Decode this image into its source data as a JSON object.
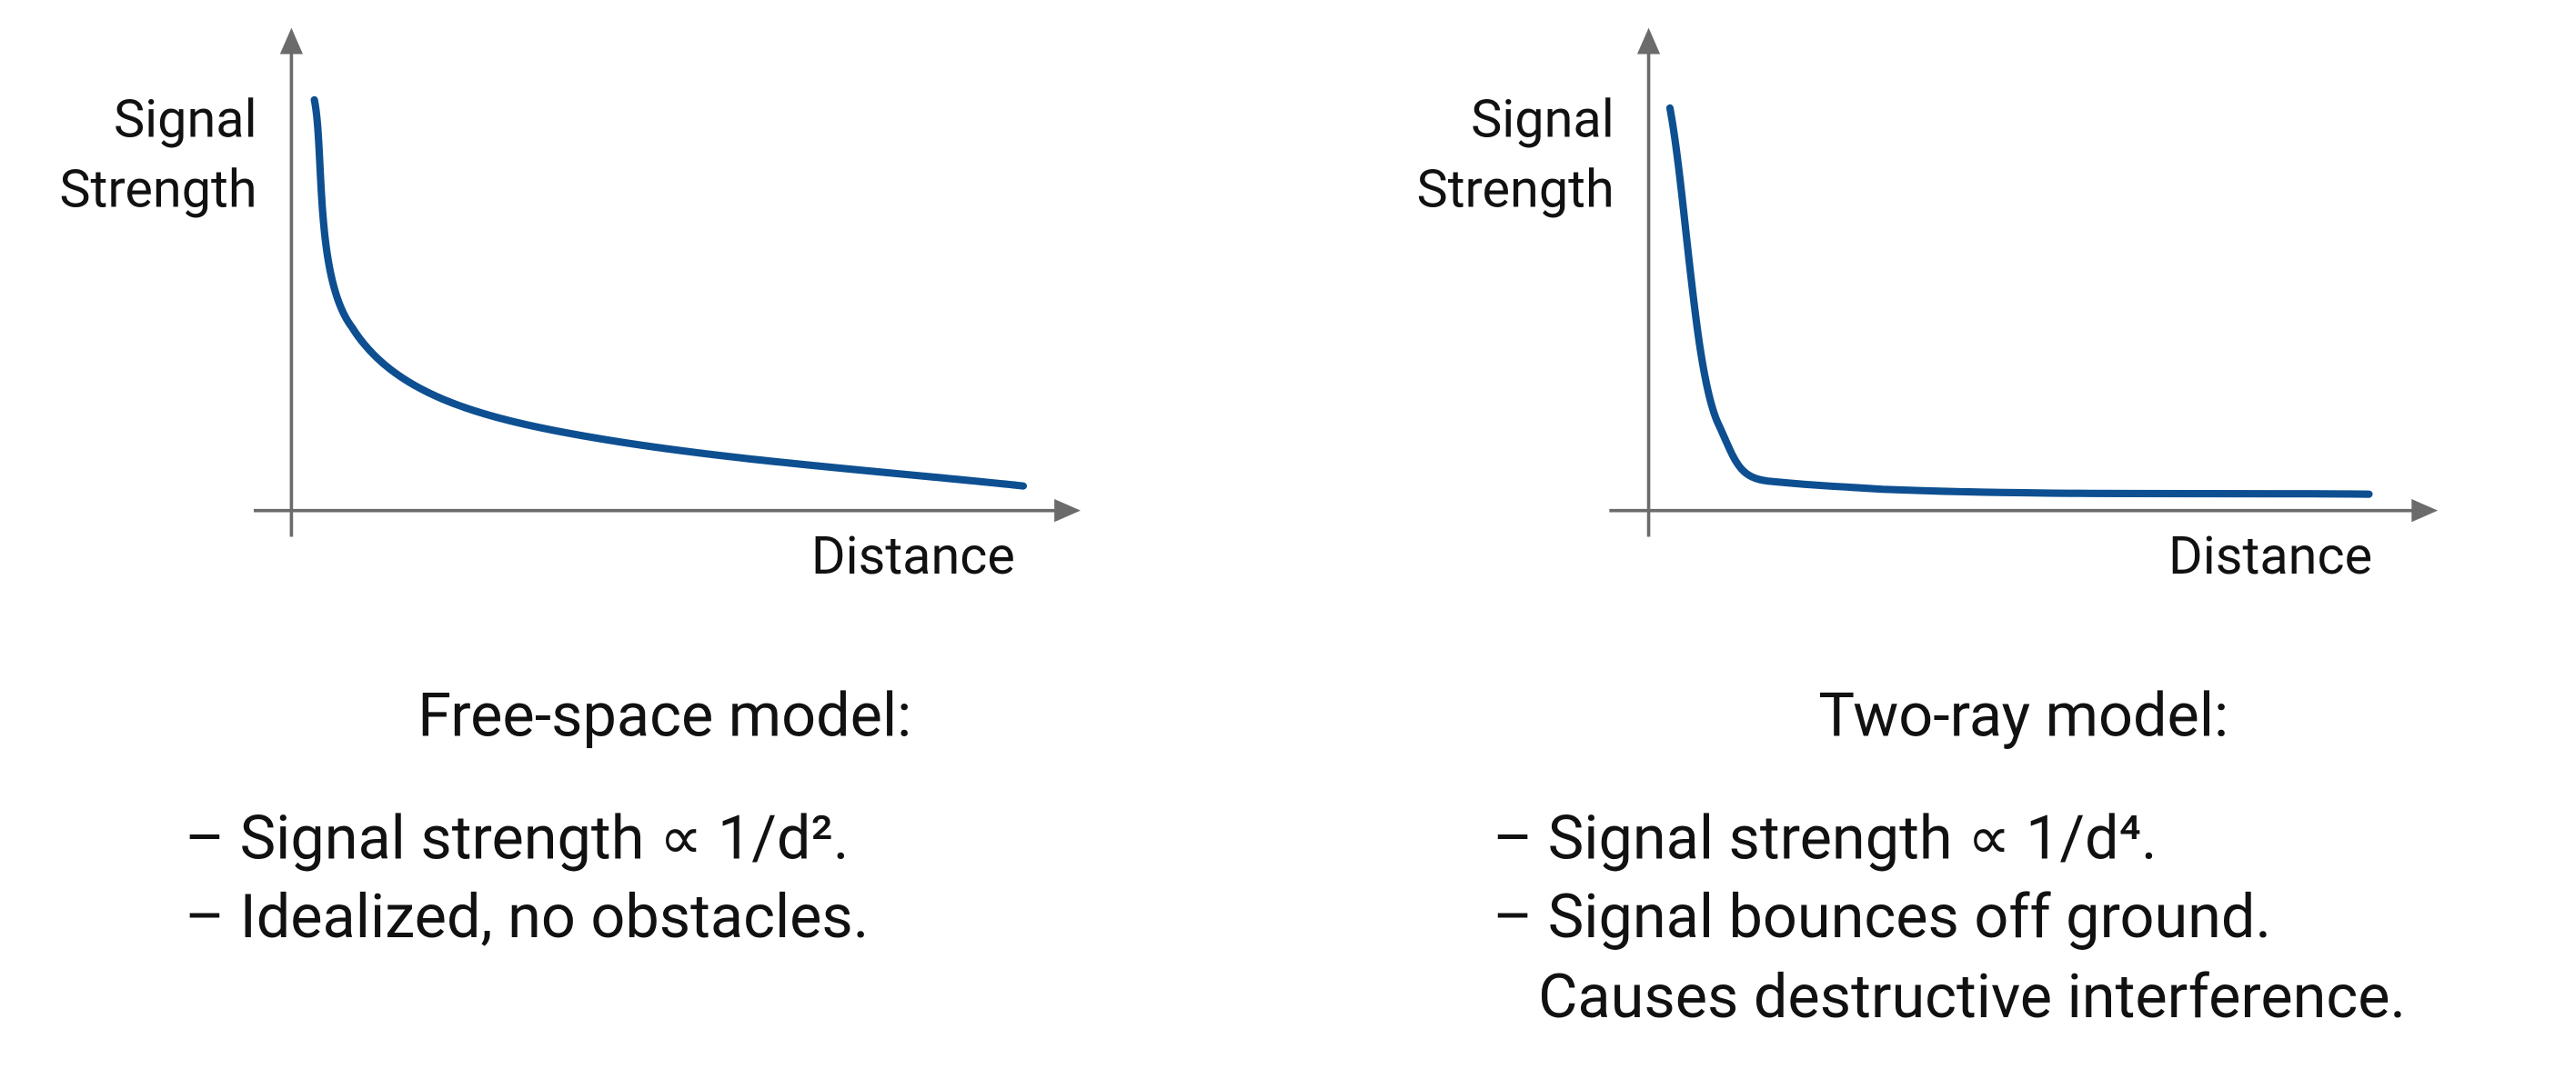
{
  "panels": [
    {
      "y_label": [
        "Signal",
        "Strength"
      ],
      "x_label": "Distance",
      "title": "Free-space model:",
      "bullets": [
        "– Signal strength ∝ 1/d².",
        "– Idealized, no obstacles."
      ]
    },
    {
      "y_label": [
        "Signal",
        "Strength"
      ],
      "x_label": "Distance",
      "title": "Two-ray model:",
      "bullets": [
        "– Signal strength ∝ 1/d⁴.",
        "– Signal bounces off ground.",
        "   Causes destructive interference."
      ]
    }
  ]
}
